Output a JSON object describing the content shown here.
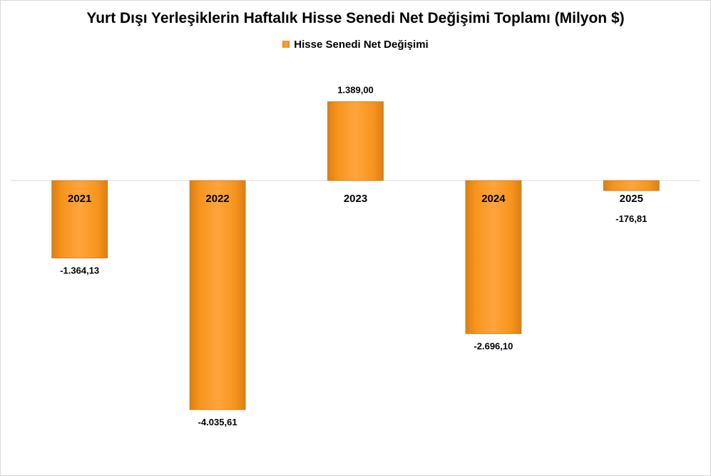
{
  "chart_data": {
    "type": "bar",
    "title": "Yurt Dışı Yerleşiklerin Haftalık Hisse Senedi Net Değişimi Toplamı (Milyon $)",
    "categories": [
      "2021",
      "2022",
      "2023",
      "2024",
      "2025"
    ],
    "series": [
      {
        "name": "Hisse Senedi Net Değişimi",
        "values": [
          -1364.13,
          -4035.61,
          1389.0,
          -2696.1,
          -176.81
        ],
        "labels": [
          "-1.364,13",
          "-4.035,61",
          "1.389,00",
          "-2.696,10",
          "-176,81"
        ]
      }
    ],
    "ylim": [
      -4500,
      2100
    ],
    "grid": false,
    "legend_position": "top",
    "bar_color": "#f7941d"
  }
}
